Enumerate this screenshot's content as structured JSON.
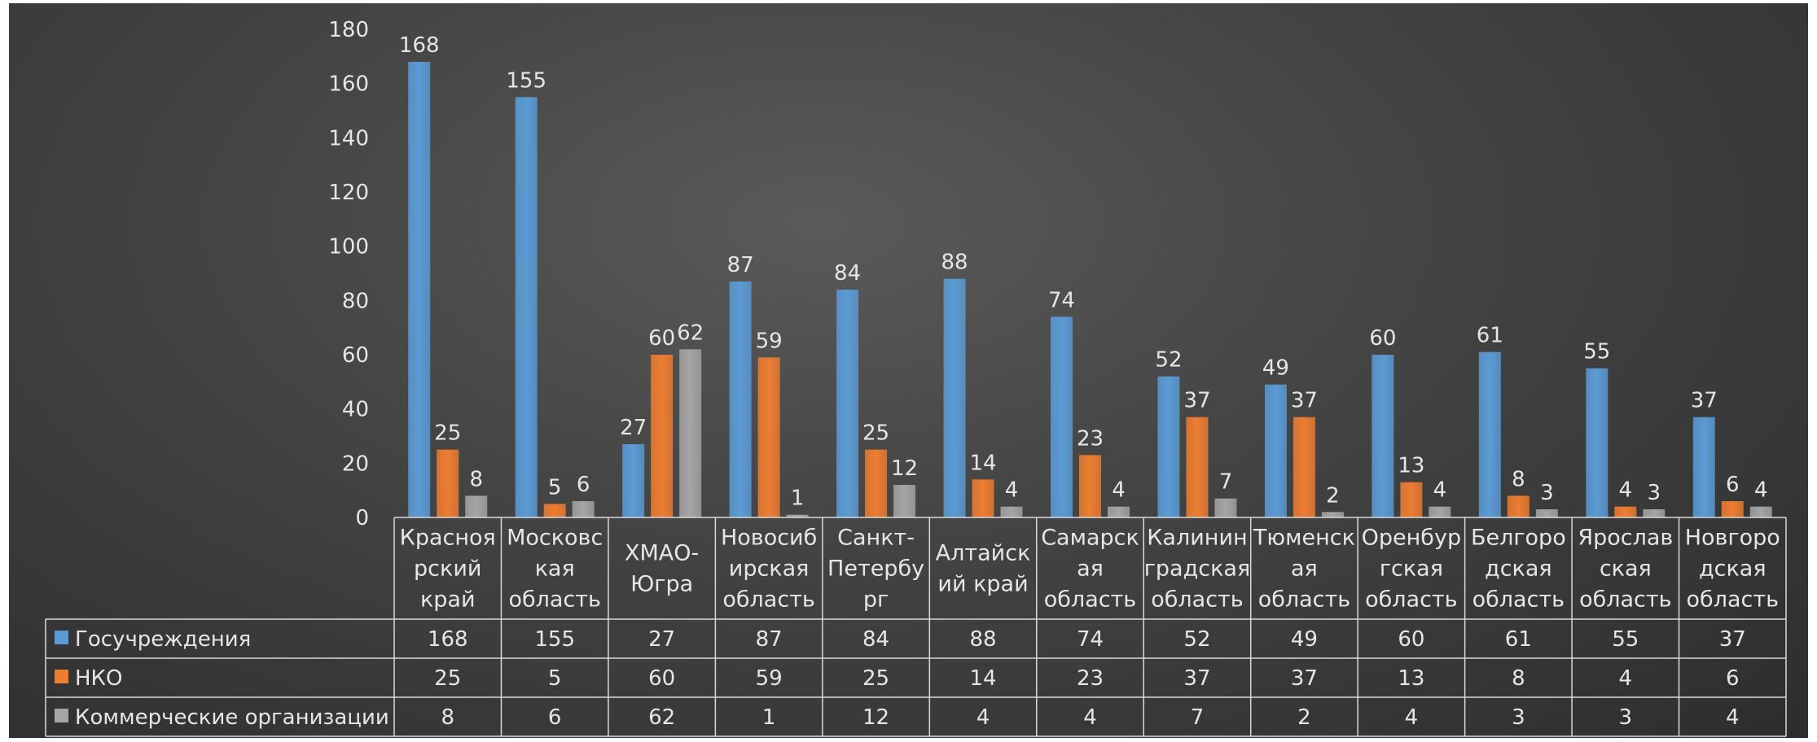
{
  "colors": {
    "series": [
      "#5b9bd5",
      "#ed7d31",
      "#a5a5a5"
    ],
    "text": "#e6e6e6",
    "grid": "#d9d9d9"
  },
  "chart_data": {
    "type": "bar",
    "title": "",
    "xlabel": "",
    "ylabel": "",
    "ylim": [
      0,
      180
    ],
    "yticks": [
      0,
      20,
      40,
      60,
      80,
      100,
      120,
      140,
      160,
      180
    ],
    "grid": false,
    "legend": "data-table-left",
    "categories": [
      [
        "Красноя",
        "рский",
        "край"
      ],
      [
        "Московс",
        "кая",
        "область"
      ],
      [
        "ХМАО-",
        "Югра"
      ],
      [
        "Новосиб",
        "ирская",
        "область"
      ],
      [
        "Санкт-",
        "Петербу",
        "рг"
      ],
      [
        "Алтайск",
        "ий край"
      ],
      [
        "Самарск",
        "ая",
        "область"
      ],
      [
        "Калинин",
        "градская",
        "область"
      ],
      [
        "Тюменск",
        "ая",
        "область"
      ],
      [
        "Оренбур",
        "гская",
        "область"
      ],
      [
        "Белгоро",
        "дская",
        "область"
      ],
      [
        "Ярослав",
        "ская",
        "область"
      ],
      [
        "Новгоро",
        "дская",
        "область"
      ]
    ],
    "series": [
      {
        "name": "Госучреждения",
        "values": [
          168,
          155,
          27,
          87,
          84,
          88,
          74,
          52,
          49,
          60,
          61,
          55,
          37
        ]
      },
      {
        "name": "НКО",
        "values": [
          25,
          5,
          60,
          59,
          25,
          14,
          23,
          37,
          37,
          13,
          8,
          4,
          6
        ]
      },
      {
        "name": "Коммерческие организации",
        "values": [
          8,
          6,
          62,
          1,
          12,
          4,
          4,
          7,
          2,
          4,
          3,
          3,
          4
        ]
      }
    ]
  }
}
